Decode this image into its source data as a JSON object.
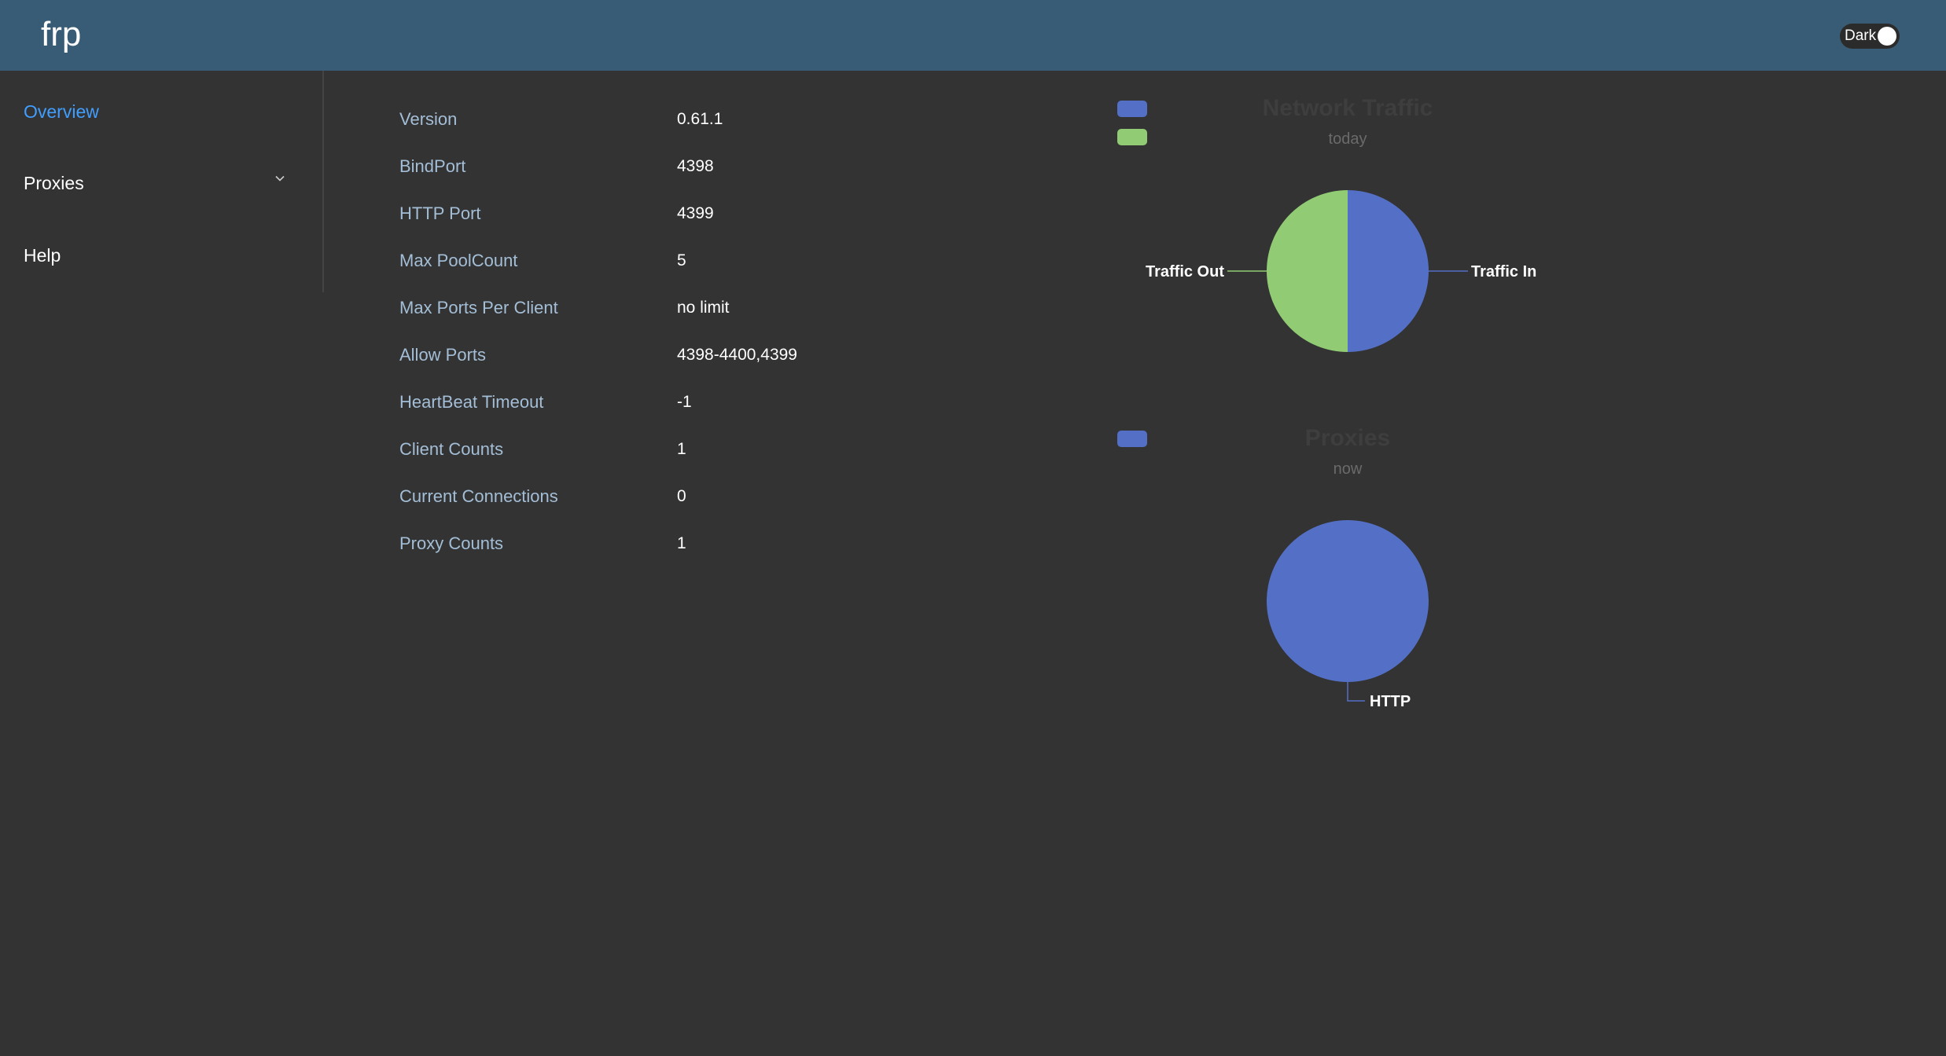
{
  "header": {
    "brand": "frp",
    "theme_toggle_label": "Dark"
  },
  "sidebar": {
    "items": [
      {
        "label": "Overview",
        "active": true
      },
      {
        "label": "Proxies",
        "has_submenu": true,
        "icon": "chevron-down-icon"
      },
      {
        "label": "Help"
      }
    ]
  },
  "server_info": [
    {
      "label": "Version",
      "value": "0.61.1"
    },
    {
      "label": "BindPort",
      "value": "4398"
    },
    {
      "label": "HTTP Port",
      "value": "4399"
    },
    {
      "label": "Max PoolCount",
      "value": "5"
    },
    {
      "label": "Max Ports Per Client",
      "value": "no limit"
    },
    {
      "label": "Allow Ports",
      "value": "4398-4400,4399"
    },
    {
      "label": "HeartBeat Timeout",
      "value": "-1"
    },
    {
      "label": "Client Counts",
      "value": "1"
    },
    {
      "label": "Current Connections",
      "value": "0"
    },
    {
      "label": "Proxy Counts",
      "value": "1"
    }
  ],
  "colors": {
    "header_bg": "#395c76",
    "page_bg": "#333333",
    "active_link": "#409eff",
    "label_text": "#a3bed6",
    "series_blue": "#5470c6",
    "series_green": "#91cc75"
  },
  "chart_data": [
    {
      "type": "pie",
      "title": "Network Traffic",
      "subtitle": "today",
      "legend_position": "top-left",
      "slices": [
        {
          "name": "Traffic In",
          "value": 50,
          "color": "#5470c6"
        },
        {
          "name": "Traffic Out",
          "value": 50,
          "color": "#91cc75"
        }
      ]
    },
    {
      "type": "pie",
      "title": "Proxies",
      "subtitle": "now",
      "legend_position": "top-left",
      "slices": [
        {
          "name": "HTTP",
          "value": 1,
          "color": "#5470c6"
        }
      ]
    }
  ]
}
